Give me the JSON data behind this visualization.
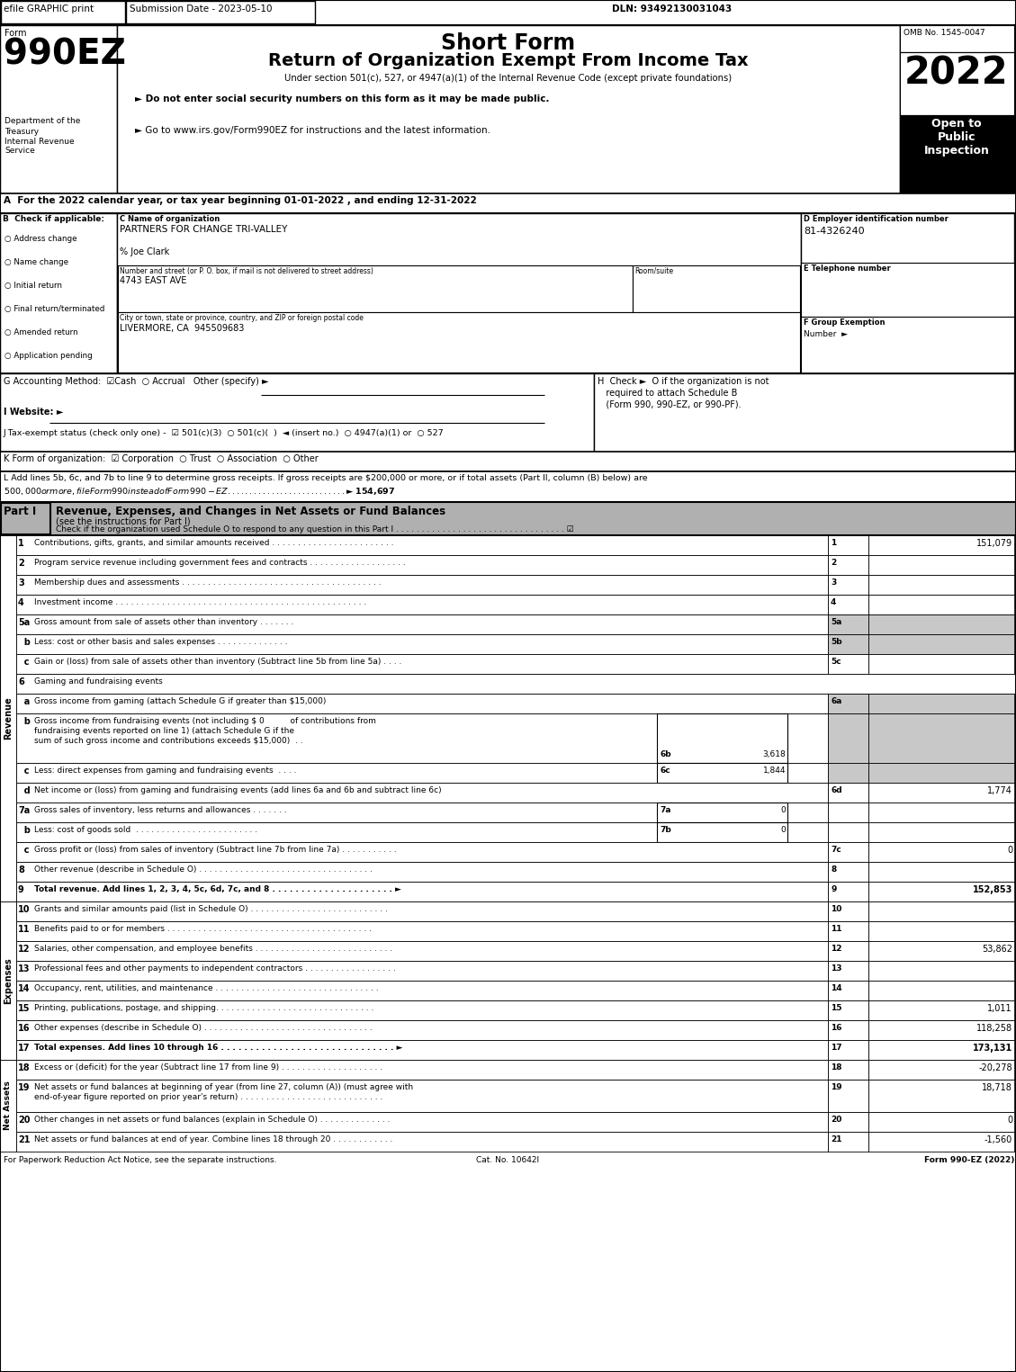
{
  "title_short": "Short Form",
  "title_main": "Return of Organization Exempt From Income Tax",
  "subtitle": "Under section 501(c), 527, or 4947(a)(1) of the Internal Revenue Code (except private foundations)",
  "bullet1": "► Do not enter social security numbers on this form as it may be made public.",
  "bullet2": "► Go to www.irs.gov/Form990EZ for instructions and the latest information.",
  "form_number": "990EZ",
  "year": "2022",
  "omb": "OMB No. 1545-0047",
  "efile_text": "efile GRAPHIC print",
  "submission_date": "Submission Date - 2023-05-10",
  "dln": "DLN: 93492130031043",
  "line_A": "A  For the 2022 calendar year, or tax year beginning 01-01-2022 , and ending 12-31-2022",
  "org_name": "PARTNERS FOR CHANGE TRI-VALLEY",
  "care_of": "% Joe Clark",
  "street_label": "Number and street (or P. O. box, if mail is not delivered to street address)",
  "room_label": "Room/suite",
  "street": "4743 EAST AVE",
  "city_label": "City or town, state or province, country, and ZIP or foreign postal code",
  "city": "LIVERMORE, CA  945509683",
  "ein": "81-4326240",
  "line_G": "G Accounting Method:  ☑Cash  ○ Accrual   Other (specify) ►",
  "line_I": "I Website: ►",
  "line_J": "J Tax-exempt status (check only one) -  ☑ 501(c)(3)  ○ 501(c)(  )  ◄ (insert no.)  ○ 4947(a)(1) or  ○ 527",
  "line_K": "K Form of organization:  ☑ Corporation  ○ Trust  ○ Association  ○ Other",
  "line_L1": "L Add lines 5b, 6c, and 7b to line 9 to determine gross receipts. If gross receipts are $200,000 or more, or if total assets (Part II, column (B) below) are",
  "line_L2": "$500,000 or more, file Form 990 instead of Form 990-EZ . . . . . . . . . . . . . . . . . . . . . . . . . . . ► $ 154,697",
  "part1_title": "Revenue, Expenses, and Changes in Net Assets or Fund Balances",
  "part1_sub": "(see the instructions for Part I)",
  "part1_check": "Check if the organization used Schedule O to respond to any question in this Part I . . . . . . . . . . . . . . . . . . . . . . . . . . . . . . . . . ☑",
  "footer1": "For Paperwork Reduction Act Notice, see the separate instructions.",
  "footer2": "Cat. No. 10642I",
  "footer3": "Form 990-EZ (2022)"
}
